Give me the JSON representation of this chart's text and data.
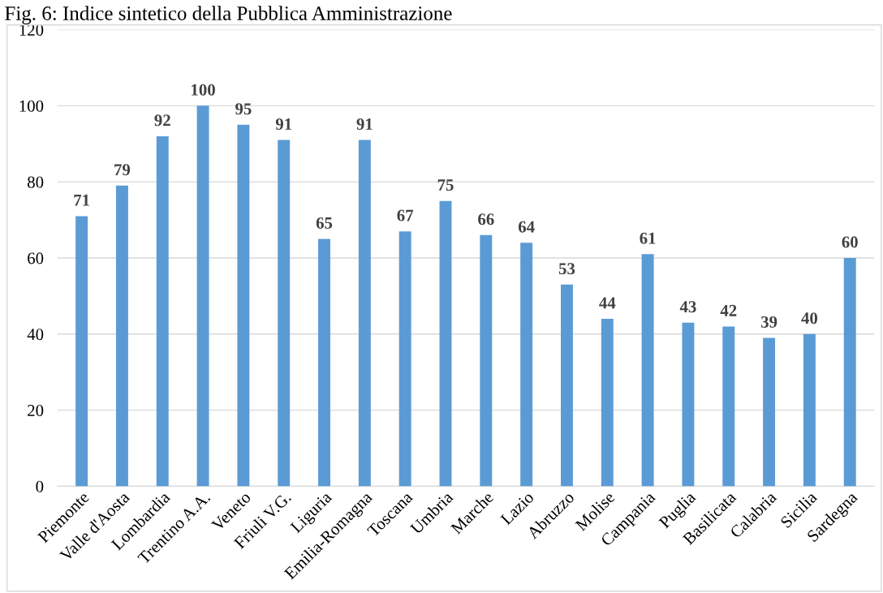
{
  "chart_data": {
    "type": "bar",
    "title": "Fig. 6: Indice sintetico della Pubblica Amministrazione",
    "categories": [
      "Piemonte",
      "Valle d'Aosta",
      "Lombardia",
      "Trentino A.A.",
      "Veneto",
      "Friuli V.G.",
      "Liguria",
      "Emilia-Romagna",
      "Toscana",
      "Umbria",
      "Marche",
      "Lazio",
      "Abruzzo",
      "Molise",
      "Campania",
      "Puglia",
      "Basilicata",
      "Calabria",
      "Sicilia",
      "Sardegna"
    ],
    "values": [
      71,
      79,
      92,
      100,
      95,
      91,
      65,
      91,
      67,
      75,
      66,
      64,
      53,
      44,
      61,
      43,
      42,
      39,
      40,
      60
    ],
    "color": "#5b9bd5",
    "ylim": [
      0,
      120
    ],
    "yticks": [
      0,
      20,
      40,
      60,
      80,
      100,
      120
    ],
    "grid": "y",
    "data_labels": true
  }
}
